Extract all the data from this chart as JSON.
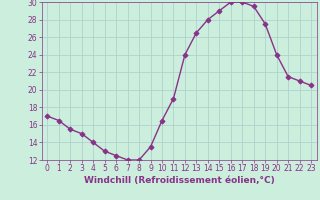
{
  "x": [
    0,
    1,
    2,
    3,
    4,
    5,
    6,
    7,
    8,
    9,
    10,
    11,
    12,
    13,
    14,
    15,
    16,
    17,
    18,
    19,
    20,
    21,
    22,
    23
  ],
  "y": [
    17.0,
    16.5,
    15.5,
    15.0,
    14.0,
    13.0,
    12.5,
    12.0,
    12.0,
    13.5,
    16.5,
    19.0,
    24.0,
    26.5,
    28.0,
    29.0,
    30.0,
    30.0,
    29.5,
    27.5,
    24.0,
    21.5,
    21.0,
    20.5
  ],
  "line_color": "#883388",
  "marker": "D",
  "bg_color": "#cceedd",
  "grid_color": "#aacccc",
  "xlabel": "Windchill (Refroidissement éolien,°C)",
  "xlim_min": -0.5,
  "xlim_max": 23.5,
  "ylim_min": 12,
  "ylim_max": 30,
  "yticks": [
    12,
    14,
    16,
    18,
    20,
    22,
    24,
    26,
    28,
    30
  ],
  "xticks": [
    0,
    1,
    2,
    3,
    4,
    5,
    6,
    7,
    8,
    9,
    10,
    11,
    12,
    13,
    14,
    15,
    16,
    17,
    18,
    19,
    20,
    21,
    22,
    23
  ],
  "tick_color": "#883388",
  "label_color": "#883388",
  "label_fontsize": 6.5,
  "tick_fontsize": 5.5,
  "line_width": 1.0,
  "marker_size": 2.5
}
